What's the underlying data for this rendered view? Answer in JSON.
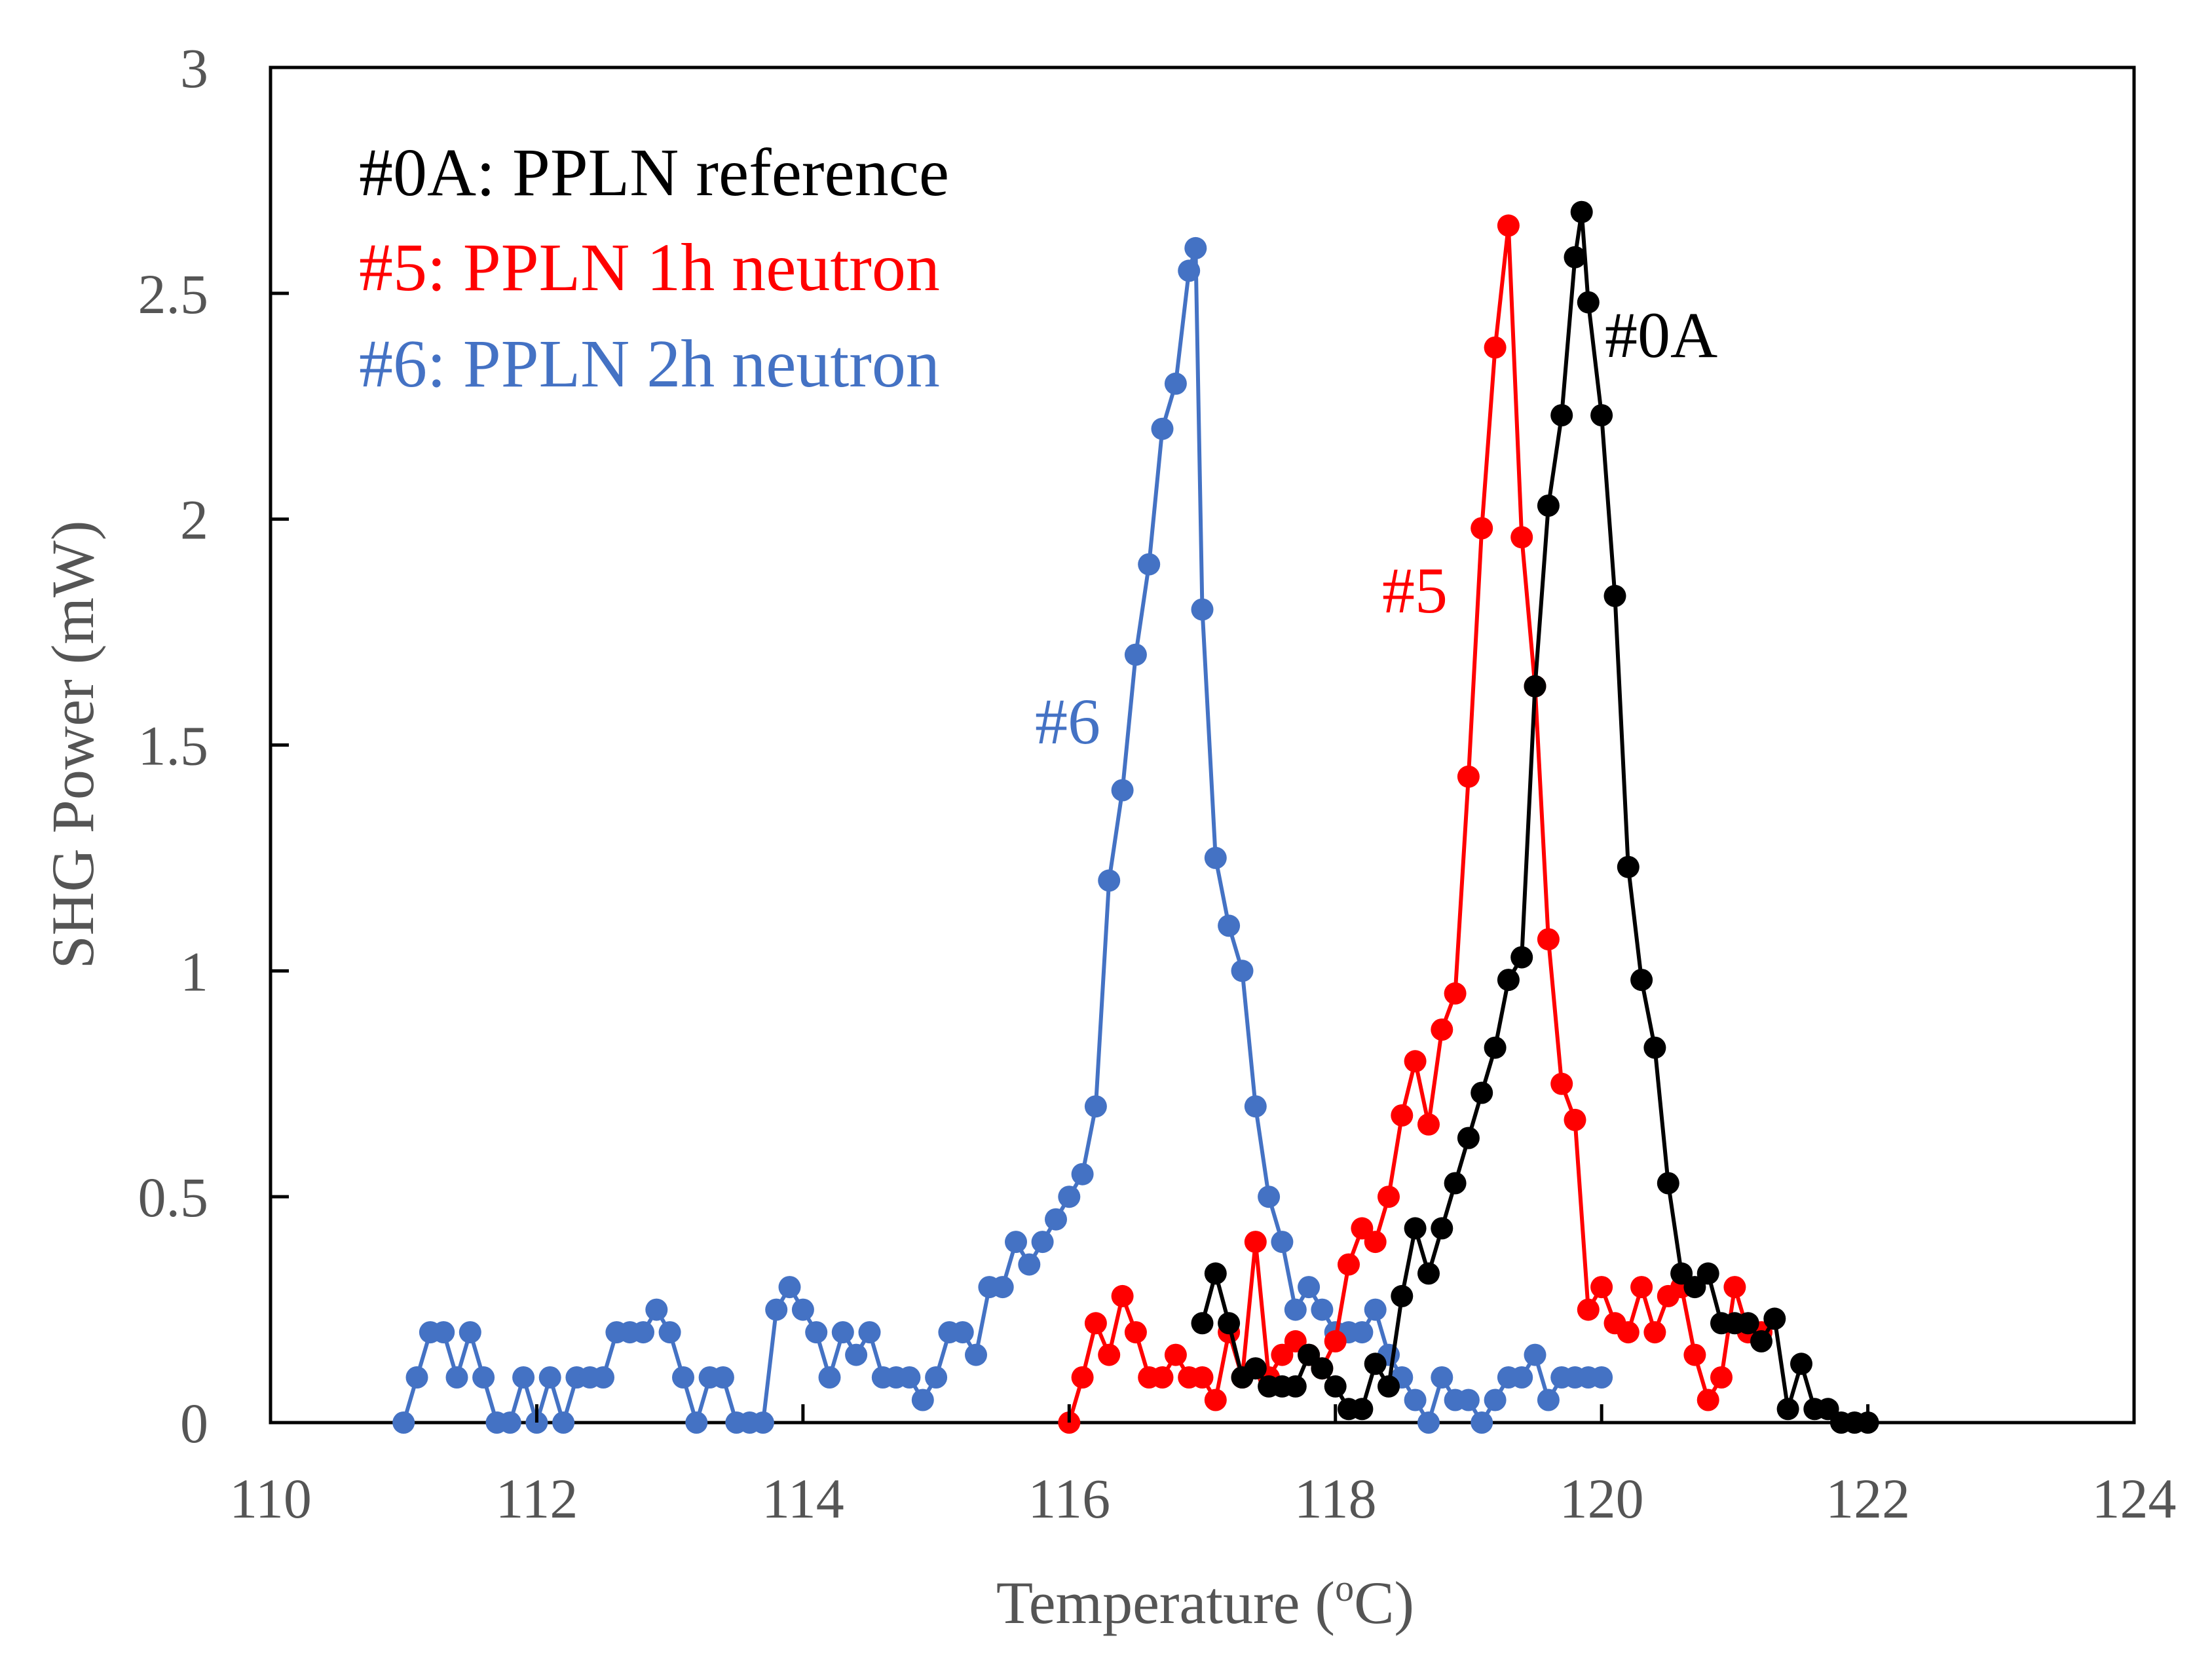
{
  "chart_data": {
    "type": "line",
    "title": "",
    "xlabel": "Temperature (",
    "xlabel_sup": "o",
    "xlabel_tail": "C)",
    "ylabel": "SHG Power (mW)",
    "xlim": [
      110,
      124
    ],
    "ylim": [
      0,
      3
    ],
    "x_ticks": [
      "110",
      "112",
      "114",
      "116",
      "118",
      "120",
      "122",
      "124"
    ],
    "y_ticks": [
      "0",
      "0.5",
      "1",
      "1.5",
      "2",
      "2.5",
      "3"
    ],
    "grid": false,
    "legend": [
      {
        "label": "#0A: PPLN reference",
        "color": "#000000"
      },
      {
        "label": "#5: PPLN 1h neutron",
        "color": "#ff0000"
      },
      {
        "label": "#6: PPLN 2h neutron",
        "color": "#4472c4"
      }
    ],
    "annotations": [
      {
        "text": "#6",
        "x": 116.2,
        "y": 1.55,
        "color": "#4472c4"
      },
      {
        "text": "#5",
        "x": 118.6,
        "y": 1.8,
        "color": "#ff0000"
      },
      {
        "text": "#0A",
        "x": 120.0,
        "y": 2.38,
        "color": "#000000"
      }
    ],
    "series": [
      {
        "name": "#6: PPLN 2h neutron",
        "color": "#4472c4",
        "x": [
          111.0,
          111.1,
          111.2,
          111.3,
          111.4,
          111.5,
          111.6,
          111.7,
          111.8,
          111.9,
          112.0,
          112.1,
          112.2,
          112.3,
          112.4,
          112.5,
          112.6,
          112.7,
          112.8,
          112.9,
          113.0,
          113.1,
          113.2,
          113.3,
          113.4,
          113.5,
          113.6,
          113.7,
          113.8,
          113.9,
          114.0,
          114.1,
          114.2,
          114.3,
          114.4,
          114.5,
          114.6,
          114.7,
          114.8,
          114.9,
          115.0,
          115.1,
          115.2,
          115.3,
          115.4,
          115.5,
          115.6,
          115.7,
          115.8,
          115.9,
          116.0,
          116.1,
          116.2,
          116.3,
          116.4,
          116.5,
          116.6,
          116.7,
          116.8,
          116.9,
          116.95,
          117.0,
          117.1,
          117.2,
          117.3,
          117.4,
          117.5,
          117.6,
          117.7,
          117.8,
          117.9,
          118.0,
          118.1,
          118.2,
          118.3,
          118.4,
          118.5,
          118.6,
          118.7,
          118.8,
          118.9,
          119.0,
          119.1,
          119.2,
          119.3,
          119.4,
          119.5,
          119.6,
          119.7,
          119.8,
          119.9,
          120.0
        ],
        "values": [
          0.0,
          0.1,
          0.2,
          0.2,
          0.1,
          0.2,
          0.1,
          0.0,
          0.0,
          0.1,
          0.0,
          0.1,
          0.0,
          0.1,
          0.1,
          0.1,
          0.2,
          0.2,
          0.2,
          0.25,
          0.2,
          0.1,
          0.0,
          0.1,
          0.1,
          0.0,
          0.0,
          0.0,
          0.25,
          0.3,
          0.25,
          0.2,
          0.1,
          0.2,
          0.15,
          0.2,
          0.1,
          0.1,
          0.1,
          0.05,
          0.1,
          0.2,
          0.2,
          0.15,
          0.3,
          0.3,
          0.4,
          0.35,
          0.4,
          0.45,
          0.5,
          0.55,
          0.7,
          1.2,
          1.4,
          1.7,
          1.9,
          2.2,
          2.3,
          2.55,
          2.6,
          1.8,
          1.25,
          1.1,
          1.0,
          0.7,
          0.5,
          0.4,
          0.25,
          0.3,
          0.25,
          0.2,
          0.2,
          0.2,
          0.25,
          0.15,
          0.1,
          0.05,
          0.0,
          0.1,
          0.05,
          0.05,
          0.0,
          0.05,
          0.1,
          0.1,
          0.15,
          0.05,
          0.1,
          0.1,
          0.1,
          0.1
        ]
      },
      {
        "name": "#5: PPLN 1h neutron",
        "color": "#ff0000",
        "x": [
          116.0,
          116.1,
          116.2,
          116.3,
          116.4,
          116.5,
          116.6,
          116.7,
          116.8,
          116.9,
          117.0,
          117.1,
          117.2,
          117.3,
          117.4,
          117.5,
          117.6,
          117.7,
          117.8,
          117.9,
          118.0,
          118.1,
          118.2,
          118.3,
          118.4,
          118.5,
          118.6,
          118.7,
          118.8,
          118.9,
          119.0,
          119.1,
          119.2,
          119.3,
          119.4,
          119.5,
          119.6,
          119.7,
          119.8,
          119.9,
          120.0,
          120.1,
          120.2,
          120.3,
          120.4,
          120.5,
          120.6,
          120.7,
          120.8,
          120.9,
          121.0,
          121.1,
          121.2
        ],
        "values": [
          0.0,
          0.1,
          0.22,
          0.15,
          0.28,
          0.2,
          0.1,
          0.1,
          0.15,
          0.1,
          0.1,
          0.05,
          0.2,
          0.1,
          0.4,
          0.1,
          0.15,
          0.18,
          0.15,
          0.12,
          0.18,
          0.35,
          0.43,
          0.4,
          0.5,
          0.68,
          0.8,
          0.66,
          0.87,
          0.95,
          1.43,
          1.98,
          2.38,
          2.65,
          1.96,
          1.63,
          1.07,
          0.75,
          0.67,
          0.25,
          0.3,
          0.22,
          0.2,
          0.3,
          0.2,
          0.28,
          0.3,
          0.15,
          0.05,
          0.1,
          0.3,
          0.2,
          0.2
        ]
      },
      {
        "name": "#0A: PPLN reference",
        "color": "#000000",
        "x": [
          117.0,
          117.1,
          117.2,
          117.3,
          117.4,
          117.5,
          117.6,
          117.7,
          117.8,
          117.9,
          118.0,
          118.1,
          118.2,
          118.3,
          118.4,
          118.5,
          118.6,
          118.7,
          118.8,
          118.9,
          119.0,
          119.1,
          119.2,
          119.3,
          119.4,
          119.5,
          119.6,
          119.7,
          119.8,
          119.85,
          119.9,
          120.0,
          120.1,
          120.2,
          120.3,
          120.4,
          120.5,
          120.6,
          120.7,
          120.8,
          120.9,
          121.0,
          121.1,
          121.2,
          121.3,
          121.4,
          121.5,
          121.6,
          121.7,
          121.8,
          121.9,
          122.0
        ],
        "values": [
          0.22,
          0.33,
          0.22,
          0.1,
          0.12,
          0.08,
          0.08,
          0.08,
          0.15,
          0.12,
          0.08,
          0.03,
          0.03,
          0.13,
          0.08,
          0.28,
          0.43,
          0.33,
          0.43,
          0.53,
          0.63,
          0.73,
          0.83,
          0.98,
          1.03,
          1.63,
          2.03,
          2.23,
          2.58,
          2.68,
          2.48,
          2.23,
          1.83,
          1.23,
          0.98,
          0.83,
          0.53,
          0.33,
          0.3,
          0.33,
          0.22,
          0.22,
          0.22,
          0.18,
          0.23,
          0.03,
          0.13,
          0.03,
          0.03,
          0.0,
          0.0,
          0.0
        ]
      }
    ]
  }
}
